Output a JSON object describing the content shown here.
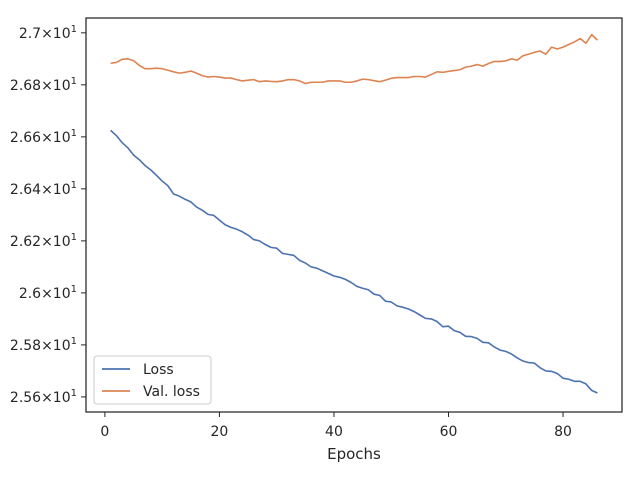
{
  "chart_data": {
    "type": "line",
    "title": "",
    "xlabel": "Epochs",
    "ylabel": "",
    "xlim": [
      -3.3,
      90.3
    ],
    "ylim": [
      25.542,
      27.057
    ],
    "x_ticks": [
      0,
      20,
      40,
      60,
      80
    ],
    "y_ticks": [
      {
        "value": 25.6,
        "mant": "2.56",
        "exp": "1"
      },
      {
        "value": 25.8,
        "mant": "2.58",
        "exp": "1"
      },
      {
        "value": 26.0,
        "mant": "2.6",
        "exp": "1"
      },
      {
        "value": 26.2,
        "mant": "2.62",
        "exp": "1"
      },
      {
        "value": 26.4,
        "mant": "2.64",
        "exp": "1"
      },
      {
        "value": 26.6,
        "mant": "2.66",
        "exp": "1"
      },
      {
        "value": 26.8,
        "mant": "2.68",
        "exp": "1"
      },
      {
        "value": 27.0,
        "mant": "2.7",
        "exp": "1"
      }
    ],
    "tick_times": "×",
    "tick_base": "10",
    "grid": false,
    "legend_position": "lower-left",
    "x": [
      1,
      2,
      3,
      4,
      5,
      6,
      7,
      8,
      9,
      10,
      11,
      12,
      13,
      14,
      15,
      16,
      17,
      18,
      19,
      20,
      21,
      22,
      23,
      24,
      25,
      26,
      27,
      28,
      29,
      30,
      31,
      32,
      33,
      34,
      35,
      36,
      37,
      38,
      39,
      40,
      41,
      42,
      43,
      44,
      45,
      46,
      47,
      48,
      49,
      50,
      51,
      52,
      53,
      54,
      55,
      56,
      57,
      58,
      59,
      60,
      61,
      62,
      63,
      64,
      65,
      66,
      67,
      68,
      69,
      70,
      71,
      72,
      73,
      74,
      75,
      76,
      77,
      78,
      79,
      80,
      81,
      82,
      83,
      84,
      85,
      86
    ],
    "series": [
      {
        "name": "Loss",
        "color": "#4c72b0",
        "values": [
          26.625,
          26.605,
          26.578,
          26.558,
          26.53,
          26.512,
          26.49,
          26.473,
          26.452,
          26.43,
          26.412,
          26.38,
          26.372,
          26.36,
          26.35,
          26.33,
          26.318,
          26.302,
          26.298,
          26.28,
          26.262,
          26.252,
          26.245,
          26.235,
          26.222,
          26.205,
          26.2,
          26.186,
          26.175,
          26.172,
          26.152,
          26.148,
          26.144,
          26.125,
          26.115,
          26.1,
          26.095,
          26.085,
          26.075,
          26.065,
          26.06,
          26.052,
          26.04,
          26.025,
          26.018,
          26.012,
          25.995,
          25.99,
          25.968,
          25.965,
          25.95,
          25.945,
          25.938,
          25.928,
          25.915,
          25.902,
          25.9,
          25.89,
          25.87,
          25.872,
          25.855,
          25.848,
          25.833,
          25.832,
          25.825,
          25.81,
          25.808,
          25.792,
          25.78,
          25.775,
          25.765,
          25.75,
          25.738,
          25.732,
          25.73,
          25.712,
          25.7,
          25.698,
          25.69,
          25.672,
          25.668,
          25.66,
          25.66,
          25.65,
          25.625,
          25.615
        ]
      },
      {
        "name": "Val. loss",
        "color": "#dd8452",
        "values": [
          26.883,
          26.886,
          26.898,
          26.9,
          26.893,
          26.875,
          26.862,
          26.862,
          26.864,
          26.862,
          26.856,
          26.85,
          26.845,
          26.848,
          26.853,
          26.845,
          26.835,
          26.83,
          26.832,
          26.83,
          26.826,
          26.826,
          26.82,
          26.815,
          26.818,
          26.82,
          26.812,
          26.815,
          26.813,
          26.812,
          26.815,
          26.82,
          26.82,
          26.815,
          26.805,
          26.81,
          26.81,
          26.81,
          26.815,
          26.815,
          26.815,
          26.81,
          26.81,
          26.815,
          26.822,
          26.82,
          26.816,
          26.812,
          26.818,
          26.825,
          26.828,
          26.828,
          26.828,
          26.832,
          26.832,
          26.83,
          26.84,
          26.85,
          26.848,
          26.852,
          26.855,
          26.858,
          26.868,
          26.872,
          26.878,
          26.872,
          26.882,
          26.89,
          26.89,
          26.892,
          26.9,
          26.895,
          26.912,
          26.918,
          26.925,
          26.93,
          26.918,
          26.945,
          26.938,
          26.945,
          26.955,
          26.965,
          26.978,
          26.96,
          26.993,
          26.972
        ]
      }
    ]
  }
}
